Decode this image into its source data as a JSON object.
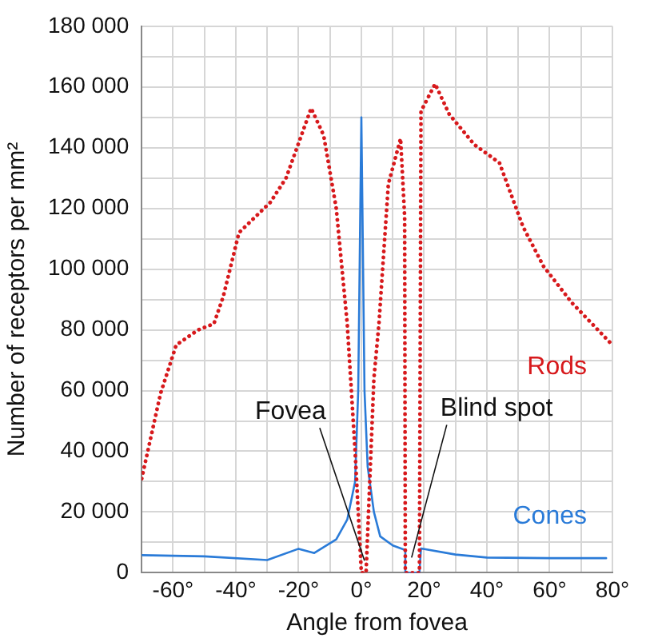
{
  "chart_data": {
    "type": "line",
    "xlabel": "Angle from fovea",
    "ylabel": "Number of receptors per mm²",
    "xlim": [
      -70,
      80
    ],
    "ylim": [
      0,
      180000
    ],
    "xticks": [
      {
        "value": -70,
        "label": null
      },
      {
        "value": -60,
        "label": "-60°"
      },
      {
        "value": -50,
        "label": null
      },
      {
        "value": -40,
        "label": "-40°"
      },
      {
        "value": -30,
        "label": null
      },
      {
        "value": -20,
        "label": "-20°"
      },
      {
        "value": -10,
        "label": null
      },
      {
        "value": 0,
        "label": "0°"
      },
      {
        "value": 10,
        "label": null
      },
      {
        "value": 20,
        "label": "20°"
      },
      {
        "value": 30,
        "label": null
      },
      {
        "value": 40,
        "label": "40°"
      },
      {
        "value": 50,
        "label": null
      },
      {
        "value": 60,
        "label": "60°"
      },
      {
        "value": 70,
        "label": null
      },
      {
        "value": 80,
        "label": "80°"
      }
    ],
    "yticks": [
      {
        "value": 0,
        "label": "0"
      },
      {
        "value": 10000,
        "label": null
      },
      {
        "value": 20000,
        "label": "20 000"
      },
      {
        "value": 30000,
        "label": null
      },
      {
        "value": 40000,
        "label": "40 000"
      },
      {
        "value": 50000,
        "label": null
      },
      {
        "value": 60000,
        "label": "60 000"
      },
      {
        "value": 70000,
        "label": null
      },
      {
        "value": 80000,
        "label": "80 000"
      },
      {
        "value": 90000,
        "label": null
      },
      {
        "value": 100000,
        "label": "100 000"
      },
      {
        "value": 110000,
        "label": null
      },
      {
        "value": 120000,
        "label": "120 000"
      },
      {
        "value": 130000,
        "label": null
      },
      {
        "value": 140000,
        "label": "140 000"
      },
      {
        "value": 150000,
        "label": null
      },
      {
        "value": 160000,
        "label": "160 000"
      },
      {
        "value": 170000,
        "label": null
      },
      {
        "value": 180000,
        "label": "180 000"
      }
    ],
    "grid": true,
    "marker": "none",
    "series": [
      {
        "name": "Rods",
        "color": "#d7191c",
        "line_style": "dotted",
        "x": [
          -70,
          -64,
          -59,
          -52,
          -47,
          -44,
          -39,
          -29,
          -24,
          -16,
          -12,
          -8,
          -4.5,
          -2,
          0,
          1.5,
          4,
          5.6,
          8.6,
          12.5,
          13.8,
          14,
          18.5,
          19,
          23.5,
          28,
          36,
          44,
          51.5,
          58,
          67,
          80
        ],
        "values": [
          31000,
          59000,
          75000,
          80000,
          82000,
          91000,
          112000,
          122000,
          130000,
          153000,
          144000,
          120000,
          82000,
          40000,
          0,
          0,
          64000,
          82000,
          128000,
          143000,
          117000,
          0,
          0,
          152000,
          161000,
          151000,
          141000,
          135000,
          114000,
          101000,
          89000,
          75000
        ]
      },
      {
        "name": "Cones",
        "color": "#2a7bd8",
        "line_style": "solid",
        "x": [
          -70,
          -50,
          -30,
          -20,
          -15,
          -8,
          -4.5,
          -2,
          -1,
          0,
          1,
          2,
          4,
          6,
          10,
          14,
          14,
          18.5,
          19,
          30,
          40,
          60,
          78
        ],
        "values": [
          5800,
          5400,
          4200,
          7900,
          6500,
          11000,
          17500,
          30000,
          60000,
          150000,
          60000,
          35000,
          20000,
          12000,
          9000,
          7500,
          0,
          0,
          8000,
          6000,
          5000,
          4800,
          4800
        ]
      }
    ],
    "annotations": [
      {
        "text": "Fovea",
        "x": 1,
        "y": 4000
      },
      {
        "text": "Blind spot",
        "x": 16,
        "y": 5000
      }
    ]
  }
}
